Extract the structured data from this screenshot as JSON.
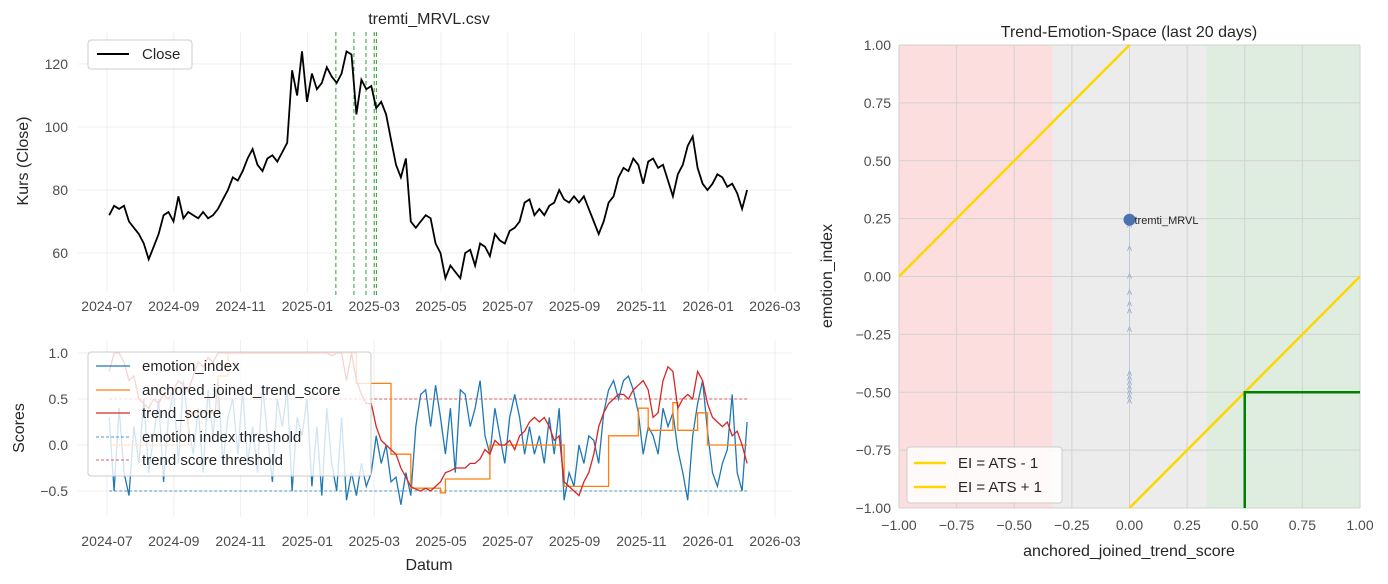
{
  "chart_data": [
    {
      "type": "line",
      "title": "tremti_MRVL.csv",
      "xlabel": "",
      "ylabel": "Kurs (Close)",
      "ylim": [
        48,
        130
      ],
      "yticks": [
        "60",
        "80",
        "100",
        "120"
      ],
      "xticks": [
        "2024-07",
        "2024-09",
        "2024-11",
        "2025-01",
        "2025-03",
        "2025-05",
        "2025-07",
        "2025-09",
        "2025-11",
        "2026-01",
        "2026-03"
      ],
      "x_start": "2024-07-03",
      "x_end": "2026-02-06",
      "legend": {
        "position": "top-left",
        "entries": [
          "Close"
        ]
      },
      "colors": {
        "close": "#000000",
        "signal": "#2ca02c"
      },
      "signal_dates": [
        "2025-01-27",
        "2025-02-13",
        "2025-02-24",
        "2025-03-01",
        "2025-03-03"
      ],
      "series": [
        {
          "name": "Close",
          "values": [
            72,
            75,
            74,
            75,
            70,
            68,
            66,
            63,
            58,
            62,
            66,
            72,
            73,
            70,
            78,
            71,
            73,
            72,
            71,
            73,
            71,
            72,
            74,
            77,
            80,
            84,
            83,
            86,
            90,
            93,
            88,
            86,
            90,
            91,
            89,
            92,
            95,
            118,
            110,
            124,
            108,
            117,
            112,
            114,
            119,
            116,
            114,
            117,
            124,
            123,
            104,
            115,
            112,
            113,
            106,
            108,
            104,
            96,
            88,
            84,
            90,
            70,
            68,
            70,
            72,
            71,
            63,
            60,
            52,
            56,
            54,
            52,
            60,
            61,
            56,
            63,
            62,
            59,
            66,
            64,
            63,
            67,
            68,
            70,
            76,
            77,
            72,
            74,
            72,
            75,
            76,
            80,
            77,
            76,
            78,
            76,
            78,
            74,
            70,
            66,
            70,
            76,
            78,
            84,
            87,
            86,
            90,
            88,
            82,
            89,
            90,
            87,
            88,
            83,
            78,
            85,
            88,
            94,
            97,
            87,
            82,
            80,
            82,
            85,
            84,
            81,
            82,
            79,
            74,
            80
          ]
        }
      ]
    },
    {
      "type": "line",
      "title": "",
      "xlabel": "Datum",
      "ylabel": "Scores",
      "ylim": [
        -0.76,
        1.14
      ],
      "yticks": [
        "−0.5",
        "0.0",
        "0.5",
        "1.0"
      ],
      "xticks": [
        "2024-07",
        "2024-09",
        "2024-11",
        "2025-01",
        "2025-03",
        "2025-05",
        "2025-07",
        "2025-09",
        "2025-11",
        "2026-01",
        "2026-03"
      ],
      "x_start": "2024-07-03",
      "x_end": "2026-02-06",
      "legend": {
        "position": "top-left",
        "entries": [
          "emotion_index",
          "anchored_joined_trend_score",
          "trend_score",
          "emotion index threshold",
          "trend score threshold"
        ]
      },
      "thresholds": {
        "emotion_index": -0.5,
        "trend_score": 0.5
      },
      "colors": {
        "emotion_index": "#1f77b4",
        "anchored_joined_trend_score": "#ff7f0e",
        "trend_score": "#d62728"
      },
      "series": [
        {
          "name": "emotion_index",
          "values": [
            0.3,
            -0.5,
            0.4,
            -0.3,
            -0.55,
            0.2,
            -0.2,
            0.5,
            -0.3,
            0.1,
            0.5,
            -0.4,
            0.3,
            0.6,
            -0.2,
            0.7,
            0.2,
            -0.1,
            0.4,
            -0.3,
            0.6,
            0.1,
            0.7,
            -0.2,
            0.3,
            0.5,
            -0.1,
            0.6,
            -0.2,
            0.2,
            -0.3,
            0.65,
            0.1,
            -0.4,
            0.5,
            0.2,
            0.6,
            -0.5,
            0.3,
            0.1,
            0.5,
            -0.45,
            0.2,
            -0.55,
            0.4,
            -0.2,
            -0.5,
            0.3,
            -0.6,
            -0.3,
            -0.55,
            -0.2,
            -0.45,
            -0.3,
            0.1,
            -0.2,
            0.0,
            -0.4,
            -0.35,
            -0.65,
            -0.3,
            -0.55,
            0.2,
            0.55,
            0.6,
            0.2,
            0.65,
            0.3,
            -0.1,
            0.4,
            -0.3,
            0.6,
            0.55,
            0.2,
            0.4,
            0.7,
            0.1,
            -0.1,
            0.4,
            0.1,
            -0.2,
            0.3,
            0.55,
            0.3,
            -0.1,
            0.2,
            -0.1,
            0.1,
            -0.2,
            0.3,
            -0.1,
            0.4,
            -0.6,
            -0.3,
            -0.45,
            0.0,
            -0.2,
            0.1,
            0.05,
            -0.2,
            0.35,
            0.6,
            0.7,
            0.5,
            0.7,
            0.75,
            0.6,
            0.35,
            -0.1,
            0.2,
            0.1,
            -0.1,
            0.4,
            0.2,
            0.35,
            -0.05,
            -0.3,
            -0.6,
            0.1,
            0.45,
            0.7,
            0.15,
            -0.3,
            -0.45,
            -0.2,
            -0.05,
            0.55,
            -0.3,
            -0.5,
            0.25
          ]
        },
        {
          "name": "anchored_joined_trend_score",
          "values": [
            0,
            0,
            0,
            0,
            0,
            0,
            0,
            0,
            0,
            0,
            0,
            0,
            0,
            0,
            0,
            0,
            0.35,
            0.35,
            0.35,
            0.35,
            0.35,
            0.35,
            0.75,
            0.75,
            1,
            1,
            1,
            1,
            1,
            1,
            1,
            1,
            1,
            1,
            1,
            1,
            1,
            1,
            1,
            1,
            1,
            1,
            1,
            1,
            1,
            1,
            1,
            1,
            1,
            1,
            0.67,
            0.67,
            0.67,
            0.67,
            0.67,
            0.67,
            0.67,
            -0.1,
            -0.1,
            -0.1,
            -0.1,
            -0.47,
            -0.47,
            -0.47,
            -0.47,
            -0.47,
            -0.47,
            -0.52,
            -0.37,
            -0.37,
            -0.37,
            -0.37,
            -0.37,
            -0.37,
            -0.37,
            -0.37,
            -0.37,
            0,
            0,
            0,
            0,
            0,
            0,
            0,
            0,
            0,
            0,
            0,
            0,
            0,
            0,
            0,
            -0.45,
            -0.45,
            -0.45,
            -0.45,
            -0.45,
            -0.45,
            -0.45,
            -0.45,
            -0.45,
            0.1,
            0.1,
            0.1,
            0.1,
            0.1,
            0.1,
            0.4,
            0.4,
            0.16,
            0.16,
            0.16,
            0.16,
            0.16,
            0.46,
            0.16,
            0.16,
            0.16,
            0.16,
            0.35,
            0.35,
            0,
            0,
            0,
            0,
            0,
            0,
            0,
            0,
            0
          ]
        },
        {
          "name": "trend_score",
          "values": [
            0.8,
            1.0,
            1.0,
            0.9,
            0.7,
            0.75,
            0.5,
            0.45,
            0.4,
            0.5,
            0.45,
            0.55,
            0.5,
            0.6,
            0.7,
            0.65,
            0.6,
            0.75,
            0.9,
            0.85,
            0.95,
            0.9,
            1.0,
            1,
            1,
            1,
            1,
            1,
            1,
            1,
            1,
            1,
            1,
            1,
            1,
            1,
            1,
            1,
            1,
            1,
            1,
            1,
            1,
            1,
            1,
            0.97,
            1,
            1,
            0.7,
            1.0,
            0.7,
            0.55,
            0.45,
            0.45,
            0.2,
            0.05,
            0.0,
            -0.05,
            -0.1,
            -0.25,
            -0.35,
            -0.45,
            -0.48,
            -0.5,
            -0.47,
            -0.5,
            -0.45,
            -0.4,
            -0.3,
            -0.28,
            -0.25,
            -0.25,
            -0.25,
            -0.2,
            -0.2,
            -0.15,
            -0.05,
            -0.1,
            0.05,
            0.0,
            0.0,
            0.05,
            -0.05,
            0.1,
            0.15,
            0.25,
            0.3,
            0.25,
            0.3,
            0.2,
            0.05,
            0.1,
            -0.4,
            -0.45,
            -0.5,
            -0.55,
            -0.4,
            -0.3,
            -0.1,
            0.2,
            0.35,
            0.45,
            0.5,
            0.55,
            0.55,
            0.5,
            0.6,
            0.65,
            0.7,
            0.6,
            0.3,
            0.35,
            0.7,
            0.85,
            0.8,
            0.4,
            0.5,
            0.55,
            0.5,
            0.8,
            0.7,
            0.45,
            0.3,
            0.25,
            0.2,
            0.25,
            0.1,
            0.15,
            0.0,
            -0.2
          ]
        }
      ]
    },
    {
      "type": "scatter",
      "title": "Trend-Emotion-Space (last 20 days)",
      "xlabel": "anchored_joined_trend_score",
      "ylabel": "emotion_index",
      "xlim": [
        -1,
        1
      ],
      "ylim": [
        -1,
        1
      ],
      "ticks": [
        "−1.00",
        "−0.75",
        "−0.50",
        "−0.25",
        "0.00",
        "0.25",
        "0.50",
        "0.75",
        "1.00"
      ],
      "zones": [
        {
          "name": "bearish",
          "from": -1,
          "to": -0.333,
          "color": "#fcdedf"
        },
        {
          "name": "neutral",
          "from": -0.333,
          "to": 0.333,
          "color": "#ececec"
        },
        {
          "name": "bullish",
          "from": 0.333,
          "to": 1,
          "color": "#deede0"
        }
      ],
      "lines": [
        {
          "label": "EI = ATS - 1",
          "offset": -1,
          "color": "#ffd700"
        },
        {
          "label": "EI = ATS + 1",
          "offset": 1,
          "color": "#ffd700"
        }
      ],
      "target_box": {
        "x_min": 0.5,
        "y_max": -0.5,
        "color": "#008000"
      },
      "point": {
        "label": "tremti_MRVL",
        "x": 0.0,
        "y": 0.245,
        "color": "#4c72b0"
      },
      "trail": {
        "x": 0.0,
        "y": [
          0.22,
          0.12,
          0.0,
          -0.07,
          -0.12,
          -0.15,
          -0.23,
          -0.42,
          -0.44,
          -0.46,
          -0.48,
          -0.5,
          -0.52,
          -0.54
        ]
      },
      "legend": {
        "position": "bottom-left",
        "entries": [
          "EI = ATS - 1",
          "EI = ATS + 1"
        ]
      }
    }
  ]
}
